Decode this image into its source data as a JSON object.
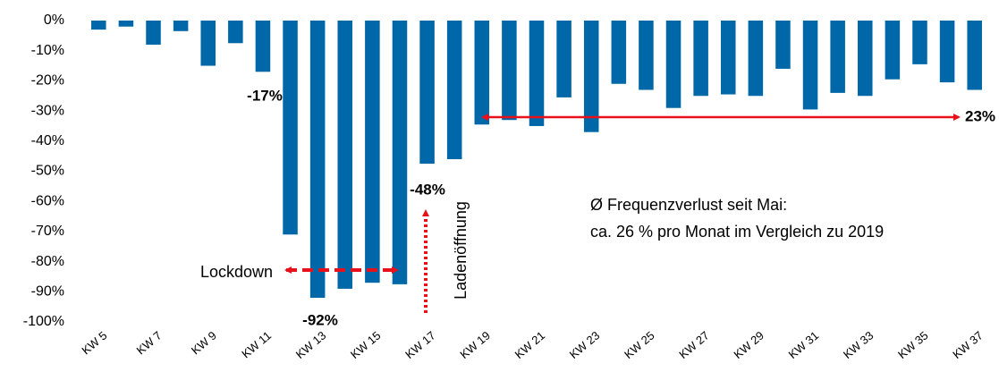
{
  "chart_data": {
    "type": "bar",
    "categories": [
      "KW 5",
      null,
      "KW 7",
      null,
      "KW 9",
      null,
      "KW 11",
      null,
      "KW 13",
      null,
      "KW 15",
      null,
      "KW 17",
      null,
      "KW 19",
      null,
      "KW 21",
      null,
      "KW 23",
      null,
      "KW 25",
      null,
      "KW 27",
      null,
      "KW 29",
      null,
      "KW 31",
      null,
      "KW 33",
      null,
      "KW 35",
      null,
      "KW 37"
    ],
    "values": [
      -3,
      -2,
      -8,
      -3.5,
      -15,
      -7.5,
      -17,
      -71,
      -92,
      -89,
      -87,
      -87.5,
      -47.5,
      -46,
      -34.5,
      -33,
      -35,
      -25.5,
      -37,
      -21,
      -23,
      -29,
      -25,
      -24.5,
      -25,
      -16,
      -29.5,
      -24,
      -25,
      -19.5,
      -14.5,
      -20.5,
      -23
    ],
    "color": "#0068a8",
    "ylim": [
      -100,
      0
    ],
    "yticks": [
      {
        "value": 0,
        "label": "0%"
      },
      {
        "value": -10,
        "label": "-10%"
      },
      {
        "value": -20,
        "label": "-20%"
      },
      {
        "value": -30,
        "label": "-30%"
      },
      {
        "value": -40,
        "label": "-40%"
      },
      {
        "value": -50,
        "label": "-50%"
      },
      {
        "value": -60,
        "label": "-60%"
      },
      {
        "value": -70,
        "label": "-70%"
      },
      {
        "value": -80,
        "label": "-80%"
      },
      {
        "value": -90,
        "label": "-90%"
      },
      {
        "value": -100,
        "label": "-100%"
      }
    ],
    "grid": false,
    "annotations": [
      "-17%",
      "-92%",
      "-48%",
      "23%",
      "Lockdown",
      "Ladenöffnung",
      "Ø Frequenzverlust seit Mai:",
      "ca. 26 % pro Monat im Vergleich zu 2019"
    ]
  }
}
